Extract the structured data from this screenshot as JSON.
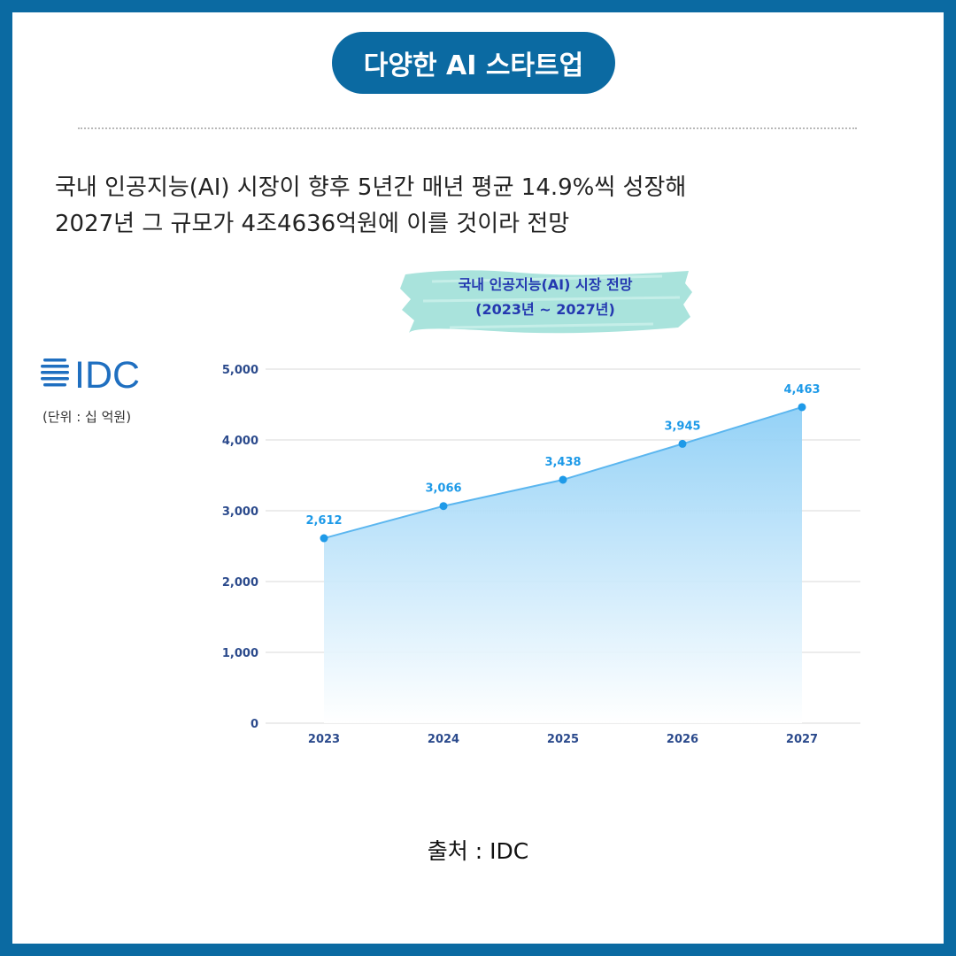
{
  "banner": {
    "title": "다양한 AI 스타트업"
  },
  "headline": {
    "line1": "국내 인공지능(AI) 시장이 향후 5년간 매년 평균 14.9%씩 성장해",
    "line2": "2027년 그 규모가 4조4636억원에 이를 것이라 전망"
  },
  "logo": {
    "icon": "idc-logo-icon",
    "text": "IDC",
    "color": "#1f6fc0"
  },
  "unit_label": "(단위 : 십 억원)",
  "chart_data": {
    "type": "area",
    "title": "국내 인공지능(AI) 시장 전망",
    "subtitle": "(2023년 ~ 2027년)",
    "categories": [
      "2023",
      "2024",
      "2025",
      "2026",
      "2027"
    ],
    "values": [
      2612,
      3066,
      3438,
      3945,
      4463
    ],
    "data_labels": [
      "2,612",
      "3,066",
      "3,438",
      "3,945",
      "4,463"
    ],
    "y_ticks": [
      "0",
      "1,000",
      "2,000",
      "3,000",
      "4,000",
      "5,000"
    ],
    "ylim": [
      0,
      5000
    ],
    "grid": true,
    "colors": {
      "line": "#5bb6ef",
      "point": "#1e9ae8",
      "fill_top": "#8ecff6",
      "fill_bottom": "#ffffff",
      "label": "#1e9ae8",
      "axis_text": "#2b4a8c",
      "grid": "#e6e6e6"
    }
  },
  "source": "출처 : IDC",
  "colors": {
    "frame": "#0b6aa2",
    "pill": "#0b6aa2",
    "chart_title": "#2438b0",
    "brush": "#a9e3dc"
  }
}
